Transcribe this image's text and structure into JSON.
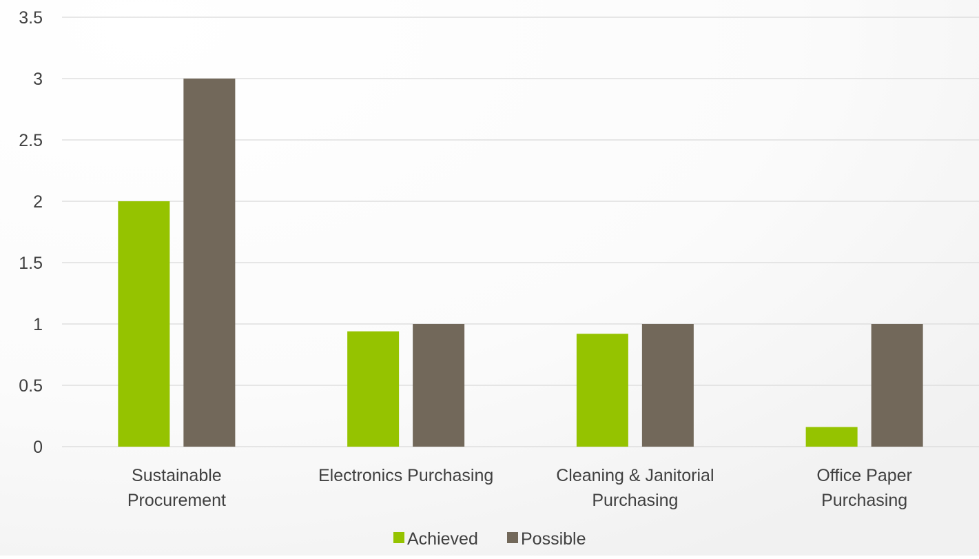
{
  "chart_data": {
    "type": "bar",
    "title": "",
    "xlabel": "",
    "ylabel": "",
    "categories": [
      [
        "Sustainable",
        "Procurement"
      ],
      [
        "Electronics Purchasing"
      ],
      [
        "Cleaning & Janitorial",
        "Purchasing"
      ],
      [
        "Office Paper",
        "Purchasing"
      ]
    ],
    "series": [
      {
        "name": "Achieved",
        "color": "#95c300",
        "values": [
          2,
          0.94,
          0.92,
          0.16
        ]
      },
      {
        "name": "Possible",
        "color": "#72685a",
        "values": [
          3,
          1,
          1,
          1
        ]
      }
    ],
    "ylim": [
      0,
      3.5
    ],
    "yticks": [
      "0",
      "0.5",
      "1",
      "1.5",
      "2",
      "2.5",
      "3",
      "3.5"
    ],
    "grid": true,
    "gridColor": "#d9d9d9",
    "legend": "bottom"
  }
}
